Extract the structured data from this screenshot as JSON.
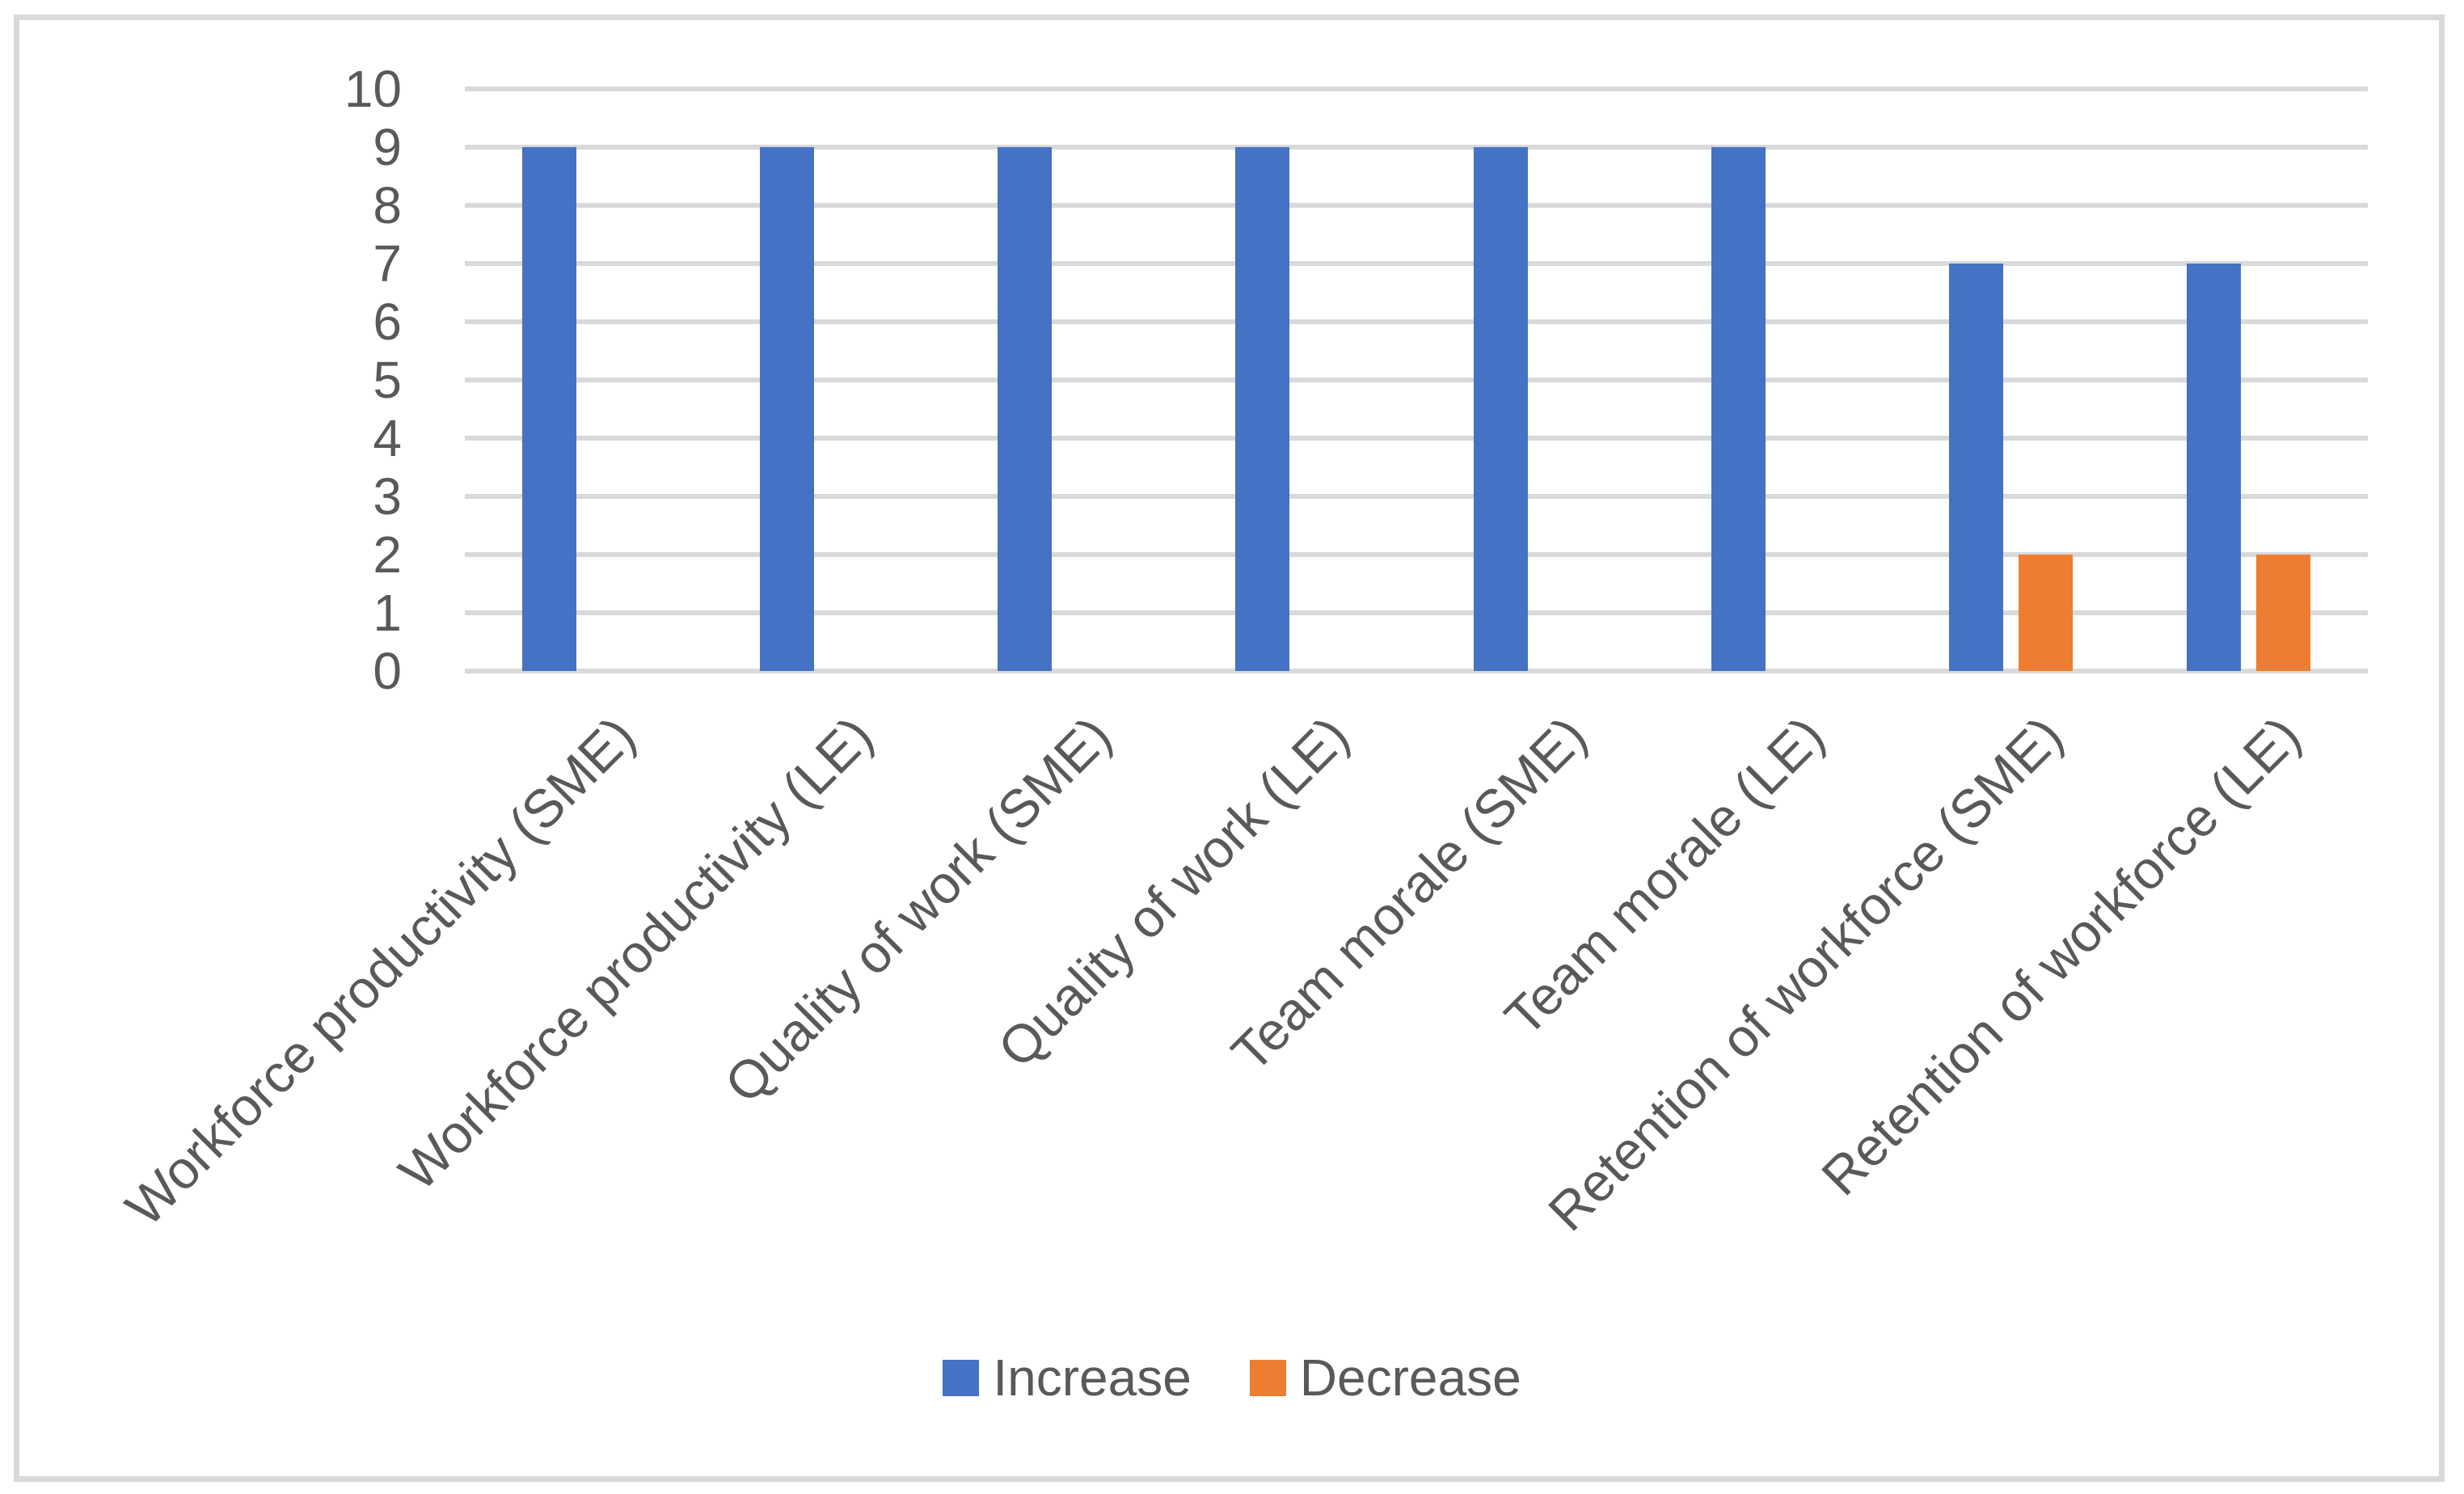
{
  "chart_data": {
    "type": "bar",
    "title": "",
    "xlabel": "",
    "ylabel": "",
    "categories": [
      "Workforce productivity (SME)",
      "Workforce productivity (LE)",
      "Quality of work (SME)",
      "Quality of work (LE)",
      "Team morale (SME)",
      "Team morale (LE)",
      "Retention of workforce (SME)",
      "Retention of workforce (LE)"
    ],
    "series": [
      {
        "name": "Increase",
        "color": "#4472C4",
        "values": [
          9,
          9,
          9,
          9,
          9,
          9,
          7,
          7
        ]
      },
      {
        "name": "Decrease",
        "color": "#ED7D31",
        "values": [
          0,
          0,
          0,
          0,
          0,
          0,
          2,
          2
        ]
      }
    ],
    "ylim": [
      0,
      10
    ],
    "ytick_step": 1,
    "yticks": [
      "0",
      "1",
      "2",
      "3",
      "4",
      "5",
      "6",
      "7",
      "8",
      "9",
      "10"
    ],
    "grid": true,
    "gridline_color": "#D9D9D9",
    "axis_text_color": "#595959",
    "x_label_rotation_deg": 45,
    "legend_position": "bottom",
    "legend": [
      {
        "label": "Increase",
        "color": "#4472C4"
      },
      {
        "label": "Decrease",
        "color": "#ED7D31"
      }
    ],
    "frame_border_color": "#D9D9D9",
    "background_color": "#FFFFFF"
  }
}
